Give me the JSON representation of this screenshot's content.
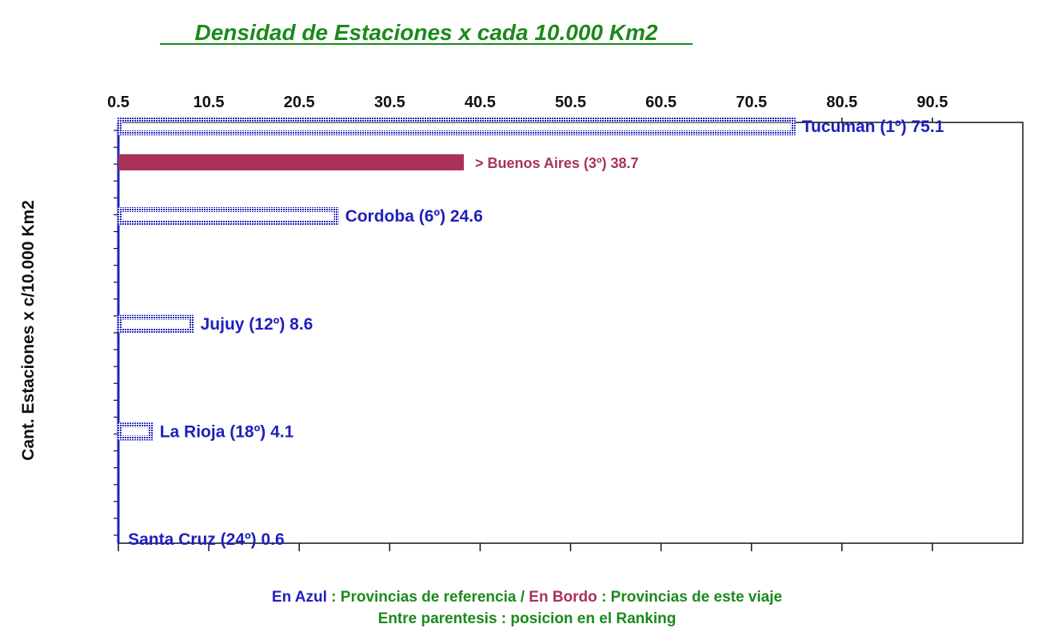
{
  "colors": {
    "title": "#1a8a1a",
    "reference": "#1f1fbf",
    "trip": "#a8325c",
    "legend_text": "#1a8a1a",
    "axis": "#111111"
  },
  "legend": {
    "line1": {
      "part1": "En Azul",
      "part2": " : Provincias de referencia / ",
      "part3": "En Bordo",
      "part4": " : Provincias de este viaje"
    },
    "line2": "Entre parentesis : posicion en el Ranking"
  },
  "chart_data": {
    "type": "bar",
    "orientation": "horizontal",
    "title": "Densidad de Estaciones x cada 10.000 Km2",
    "ylabel": "Cant. Estaciones x c/10.000 Km2",
    "xlabel": "",
    "x_axis_position": "top",
    "xlim": [
      0.5,
      100.5
    ],
    "x_ticks": [
      "0.5",
      "10.5",
      "20.5",
      "30.5",
      "40.5",
      "50.5",
      "60.5",
      "70.5",
      "80.5",
      "90.5"
    ],
    "x_tick_values": [
      0.5,
      10.5,
      20.5,
      30.5,
      40.5,
      50.5,
      60.5,
      70.5,
      80.5,
      90.5
    ],
    "grid": false,
    "bars": [
      {
        "label": "Tucuman (1º) 75.1",
        "value": 75.1,
        "rank": 1,
        "group": "reference"
      },
      {
        "label": "> Buenos Aires (3º) 38.7",
        "value": 38.7,
        "rank": 3,
        "group": "trip"
      },
      {
        "label": "Cordoba (6º) 24.6",
        "value": 24.6,
        "rank": 6,
        "group": "reference"
      },
      {
        "label": "Jujuy (12º) 8.6",
        "value": 8.6,
        "rank": 12,
        "group": "reference"
      },
      {
        "label": "La Rioja (18º) 4.1",
        "value": 4.1,
        "rank": 18,
        "group": "reference"
      },
      {
        "label": "Santa Cruz (24º) 0.6",
        "value": 0.6,
        "rank": 24,
        "group": "reference"
      }
    ],
    "total_ranks": 24
  }
}
